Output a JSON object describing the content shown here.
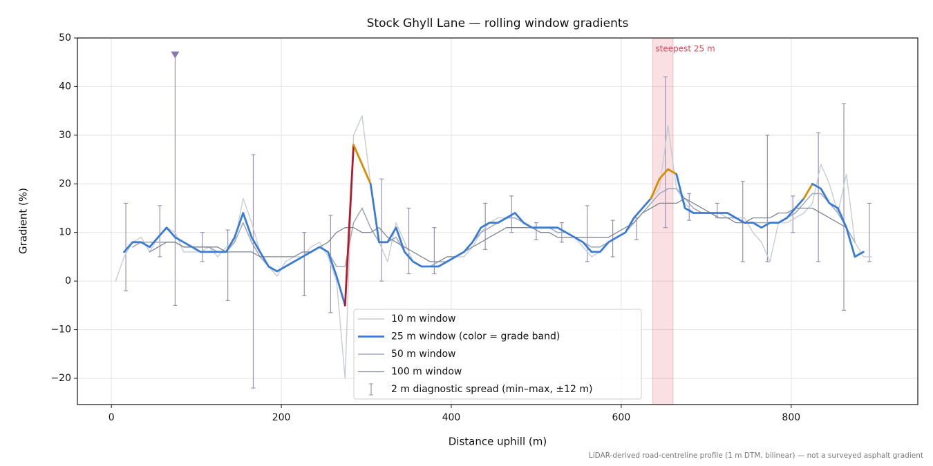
{
  "chart_data": {
    "type": "line",
    "title": "Stock Ghyll Lane — rolling window gradients",
    "x_label": "Distance uphill (m)",
    "y_label": "Gradient (%)",
    "footnote": "LiDAR-derived road-centreline profile (1 m DTM, bilinear) — not a surveyed asphalt gradient",
    "xlim": [
      -40,
      949
    ],
    "ylim": [
      -25.4,
      50
    ],
    "xticks": [
      0,
      200,
      400,
      600,
      800
    ],
    "yticks": [
      {
        "value": -20,
        "label": "−20"
      },
      {
        "value": -10,
        "label": "−10"
      },
      0,
      10,
      20,
      30,
      40,
      50
    ],
    "grid": true,
    "legend": "lower center",
    "x": [
      5,
      15,
      25,
      35,
      45,
      55,
      65,
      75,
      85,
      95,
      105,
      115,
      125,
      135,
      145,
      155,
      165,
      175,
      185,
      195,
      205,
      215,
      225,
      235,
      245,
      255,
      265,
      275,
      285,
      295,
      305,
      315,
      325,
      335,
      345,
      355,
      365,
      375,
      385,
      395,
      405,
      415,
      425,
      435,
      445,
      455,
      465,
      475,
      485,
      495,
      505,
      515,
      525,
      535,
      545,
      555,
      565,
      575,
      585,
      595,
      605,
      615,
      625,
      635,
      645,
      655,
      665,
      675,
      685,
      695,
      705,
      715,
      725,
      735,
      745,
      755,
      765,
      775,
      785,
      795,
      805,
      815,
      825,
      835,
      845,
      855,
      865,
      875,
      885,
      895
    ],
    "series": [
      {
        "name": "10 m window",
        "color": "#c5ccd4",
        "width": 1.4,
        "values": [
          0,
          5,
          8,
          9,
          6,
          9,
          11,
          10,
          6,
          6,
          6,
          7,
          5,
          7,
          8,
          17,
          12,
          6,
          3,
          1,
          4,
          5,
          5,
          7,
          8,
          5,
          0,
          -20,
          30,
          34,
          20,
          8,
          4,
          12,
          8,
          4,
          3,
          3,
          3,
          4,
          5,
          5,
          7,
          10,
          12,
          13,
          13,
          14,
          12,
          11,
          11,
          11,
          11,
          10,
          9,
          7,
          5,
          6,
          8,
          9,
          10,
          13,
          15,
          17,
          19,
          32,
          19,
          16,
          14,
          14,
          14,
          14,
          13,
          13,
          13,
          10,
          8,
          4,
          12,
          12,
          13,
          14,
          16,
          24,
          20,
          14,
          22,
          8,
          5,
          5
        ]
      },
      {
        "name": "25 m window (color = grade band)",
        "color": "#3a7bd5",
        "width": 2.8,
        "color_bands": [
          {
            "from": 20,
            "color": "#d98c00"
          },
          {
            "from": 25,
            "color": "#b5182b"
          }
        ],
        "values": [
          null,
          6,
          8,
          8,
          7,
          9,
          11,
          9,
          8,
          7,
          6,
          6,
          6,
          6,
          9,
          14,
          9,
          6,
          3,
          2,
          3,
          4,
          5,
          6,
          7,
          6,
          1,
          -5,
          28,
          24,
          20,
          8,
          8,
          11,
          6,
          4,
          3,
          3,
          3,
          4,
          5,
          6,
          8,
          11,
          12,
          12,
          13,
          14,
          12,
          11,
          11,
          11,
          11,
          10,
          9,
          8,
          6,
          6,
          8,
          9,
          10,
          13,
          15,
          17,
          21,
          23,
          22,
          15,
          14,
          14,
          14,
          14,
          14,
          13,
          12,
          12,
          11,
          12,
          12,
          13,
          15,
          17,
          20,
          19,
          16,
          15,
          11,
          5,
          6,
          null
        ]
      },
      {
        "name": "50 m window",
        "color": "#a2a9b8",
        "width": 1.6,
        "values": [
          null,
          null,
          7,
          8,
          8,
          8,
          8,
          8,
          7,
          7,
          7,
          7,
          6,
          6,
          8,
          12,
          8,
          5,
          3,
          2,
          3,
          4,
          5,
          6,
          7,
          6,
          3,
          3,
          12,
          15,
          11,
          8,
          8,
          9,
          6,
          4,
          3,
          3,
          4,
          4,
          5,
          6,
          8,
          10,
          11,
          12,
          13,
          13,
          12,
          11,
          11,
          11,
          10,
          10,
          9,
          8,
          7,
          7,
          8,
          9,
          10,
          12,
          14,
          16,
          18,
          19,
          19,
          17,
          15,
          14,
          14,
          13,
          13,
          13,
          12,
          12,
          12,
          12,
          12,
          13,
          14,
          16,
          18,
          18,
          16,
          14,
          11,
          8,
          null,
          null
        ]
      },
      {
        "name": "100 m window",
        "color": "#7f8593",
        "width": 1.3,
        "values": [
          null,
          null,
          null,
          null,
          6,
          7,
          8,
          8,
          7,
          7,
          7,
          7,
          7,
          6,
          6,
          6,
          6,
          5,
          5,
          5,
          5,
          5,
          6,
          6,
          7,
          8,
          10,
          11,
          11,
          10,
          10,
          11,
          9,
          8,
          7,
          6,
          5,
          4,
          4,
          5,
          5,
          6,
          7,
          8,
          9,
          10,
          11,
          11,
          11,
          11,
          10,
          10,
          9,
          9,
          9,
          9,
          9,
          9,
          9,
          10,
          11,
          12,
          14,
          15,
          16,
          16,
          16,
          17,
          16,
          15,
          14,
          13,
          13,
          12,
          12,
          13,
          13,
          13,
          14,
          14,
          15,
          15,
          15,
          14,
          13,
          12,
          11,
          null,
          null,
          null
        ]
      }
    ],
    "errorbars": {
      "name": "2 m diagnostic spread (min–max, ±12 m)",
      "color": "#9a90b4",
      "x": [
        17,
        57,
        75,
        107,
        137,
        167,
        227,
        258,
        318,
        350,
        380,
        440,
        471,
        500,
        530,
        560,
        590,
        618,
        652,
        680,
        713,
        743,
        772,
        802,
        832,
        862,
        892
      ],
      "low": [
        -2,
        5,
        -5,
        4,
        -4,
        -22,
        -3,
        -6.5,
        0,
        1.5,
        1.5,
        6.5,
        10,
        8.5,
        8,
        4,
        5,
        8.5,
        11,
        12.5,
        13,
        4,
        4,
        10,
        4,
        -6,
        4
      ],
      "high": [
        16,
        15.5,
        46.5,
        10,
        10.5,
        26,
        10,
        13.5,
        21,
        15,
        11,
        16,
        17.5,
        12,
        12,
        15.5,
        12.5,
        13,
        42,
        18,
        16,
        20.5,
        30,
        17.5,
        30.5,
        36.5,
        16
      ]
    },
    "markers": [
      {
        "x": 75,
        "y": 46.5,
        "color": "#8a76b0"
      }
    ],
    "spans": [
      {
        "x0": 637,
        "x1": 661,
        "label": "steepest 25 m",
        "color": "#d9485a"
      }
    ]
  }
}
